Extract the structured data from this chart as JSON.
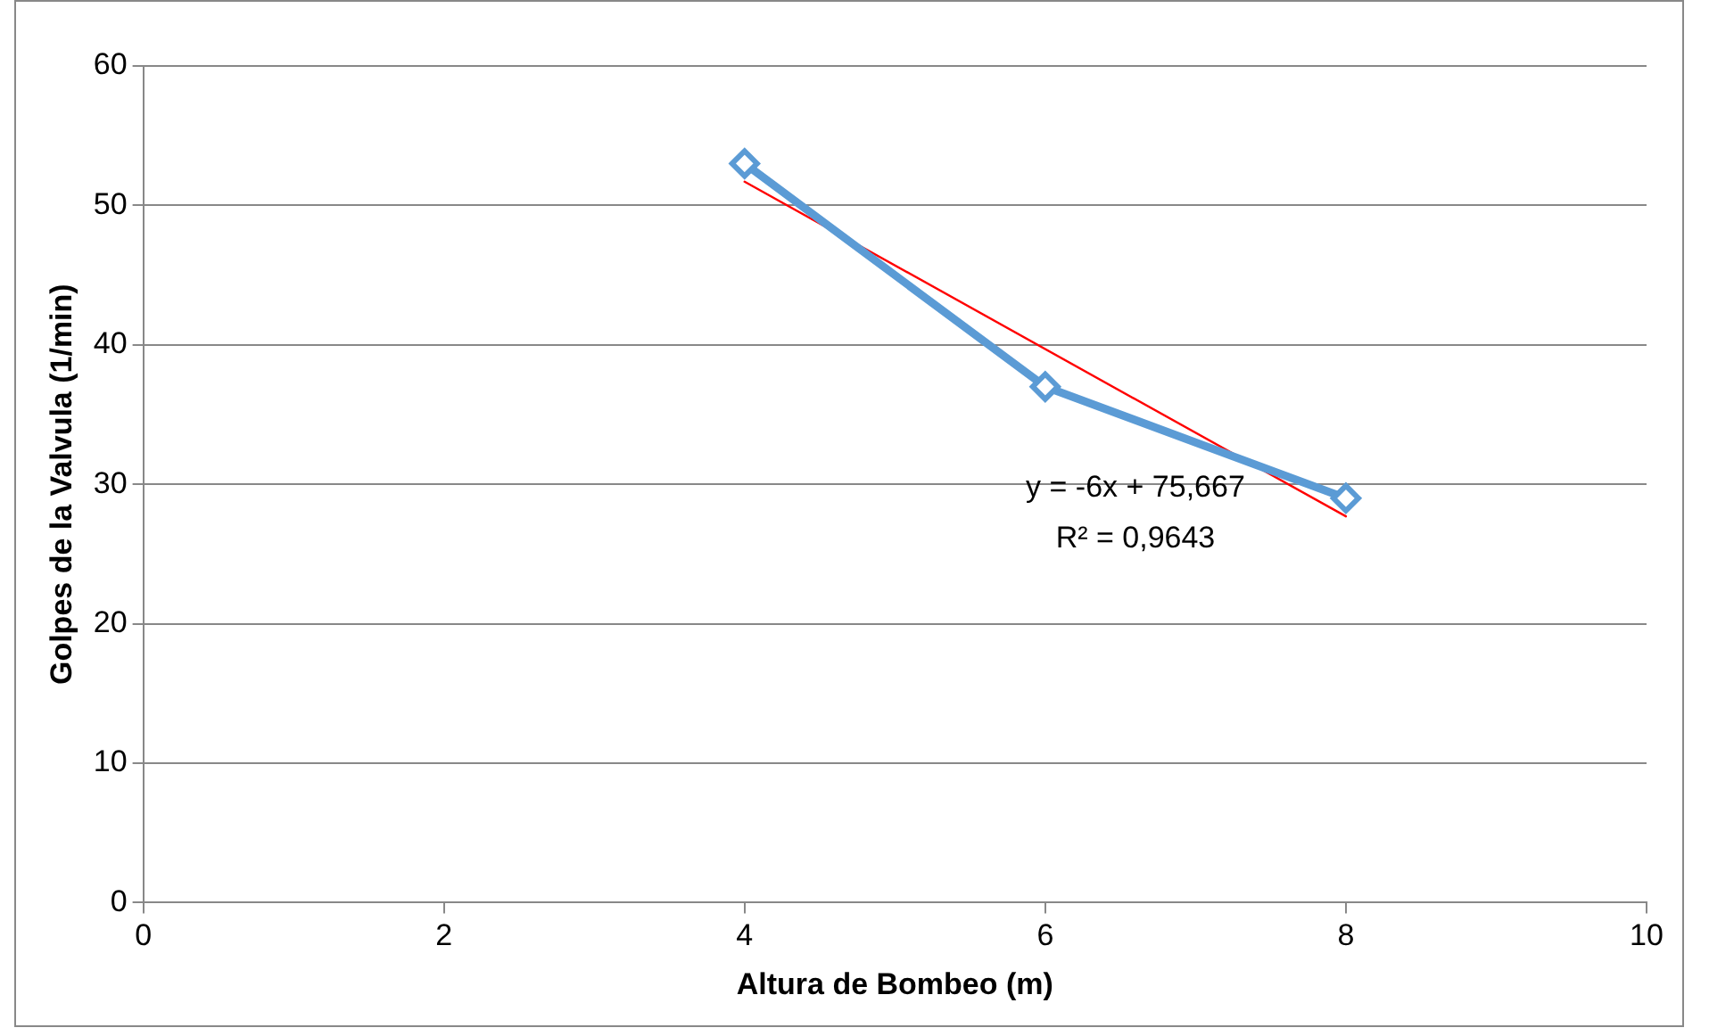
{
  "chart_data": {
    "type": "line",
    "xlabel": "Altura de Bombeo (m)",
    "ylabel": "Golpes de la Valvula (1/min)",
    "xlim": [
      0,
      10
    ],
    "xticks": [
      0,
      2,
      4,
      6,
      8,
      10
    ],
    "ylim": [
      0,
      60
    ],
    "yticks": [
      0,
      10,
      20,
      30,
      40,
      50,
      60
    ],
    "grid": "y",
    "legend": false,
    "marker": "diamond",
    "line_style": "solid",
    "series": [
      {
        "type": "line",
        "color": "#5b9bd5",
        "x": [
          4,
          6,
          8
        ],
        "values": [
          53,
          37,
          29
        ]
      },
      {
        "type": "line",
        "color": "#ff0000",
        "marker": "none",
        "x": [
          4,
          8
        ],
        "values": [
          51.7,
          27.7
        ]
      }
    ],
    "annotations": [
      "y = -6x + 75,667",
      "R² = 0,9643"
    ]
  }
}
